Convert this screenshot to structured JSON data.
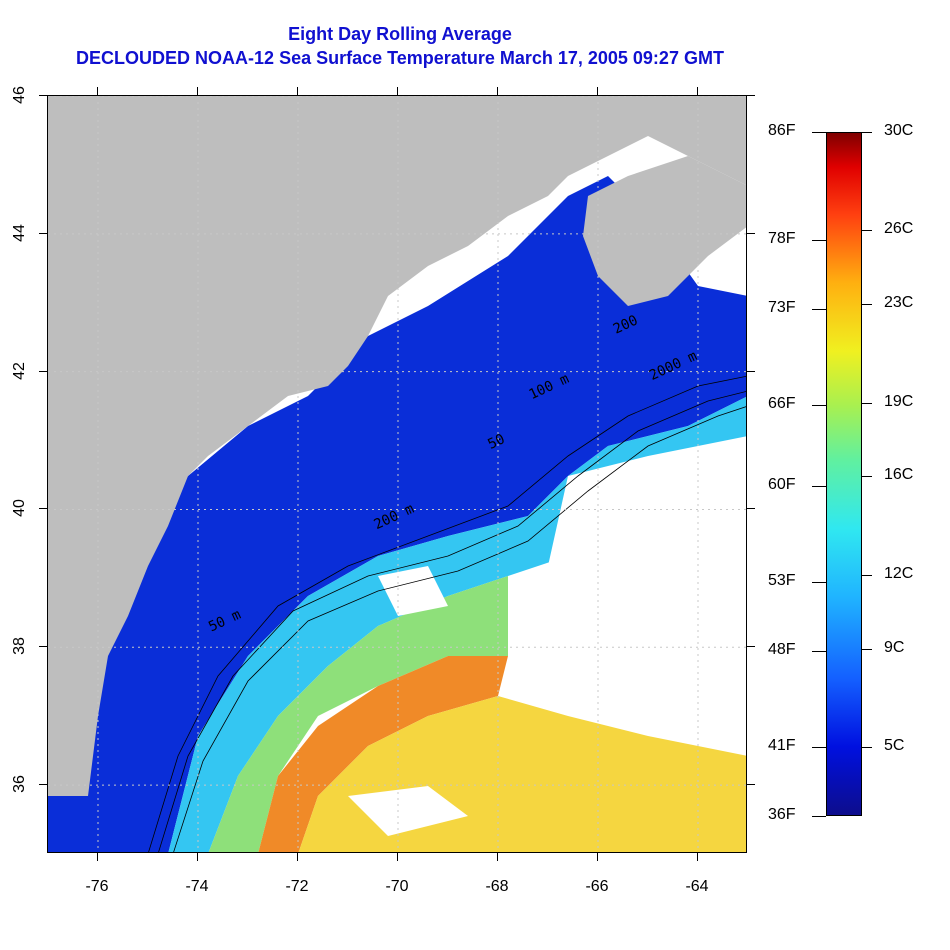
{
  "title": {
    "line1": "Eight Day Rolling Average",
    "line2": "DECLOUDED NOAA-12 Sea Surface Temperature March 17, 2005 09:27 GMT"
  },
  "colors": {
    "title": "#1010d0",
    "land": "#bebebe",
    "cloud": "#ffffff",
    "gridline": "#c8c8c8",
    "contour": "#000000"
  },
  "map": {
    "lon_range": [
      -77,
      -63
    ],
    "lat_range": [
      35,
      46
    ],
    "grid_lines": "dotted",
    "x_ticks": [
      "-76",
      "-74",
      "-72",
      "-70",
      "-68",
      "-66",
      "-64"
    ],
    "y_ticks": [
      "36",
      "38",
      "40",
      "42",
      "44",
      "46"
    ],
    "contour_labels": [
      {
        "text": "50 m",
        "lon": -73.8,
        "lat": 38.5
      },
      {
        "text": "200 m",
        "lon": -70.5,
        "lat": 40.0
      },
      {
        "text": "2000 m",
        "lon": -65.0,
        "lat": 42.2
      },
      {
        "text": "100 m",
        "lon": -67.4,
        "lat": 41.9
      },
      {
        "text": "200",
        "lon": -65.7,
        "lat": 42.8
      },
      {
        "text": "50",
        "lon": -68.2,
        "lat": 41.1
      }
    ]
  },
  "colorbar": {
    "f_labels": [
      {
        "text": "86F",
        "c": 30
      },
      {
        "text": "78F",
        "c": 25.6
      },
      {
        "text": "73F",
        "c": 22.8
      },
      {
        "text": "66F",
        "c": 18.9
      },
      {
        "text": "60F",
        "c": 15.6
      },
      {
        "text": "53F",
        "c": 11.7
      },
      {
        "text": "48F",
        "c": 8.9
      },
      {
        "text": "41F",
        "c": 5
      },
      {
        "text": "36F",
        "c": 2.2
      }
    ],
    "c_labels": [
      {
        "text": "30C",
        "c": 30
      },
      {
        "text": "26C",
        "c": 26
      },
      {
        "text": "23C",
        "c": 23
      },
      {
        "text": "19C",
        "c": 19
      },
      {
        "text": "16C",
        "c": 16
      },
      {
        "text": "12C",
        "c": 12
      },
      {
        "text": "9C",
        "c": 9
      },
      {
        "text": "5C",
        "c": 5
      }
    ],
    "range_c": [
      2.2,
      30
    ]
  }
}
